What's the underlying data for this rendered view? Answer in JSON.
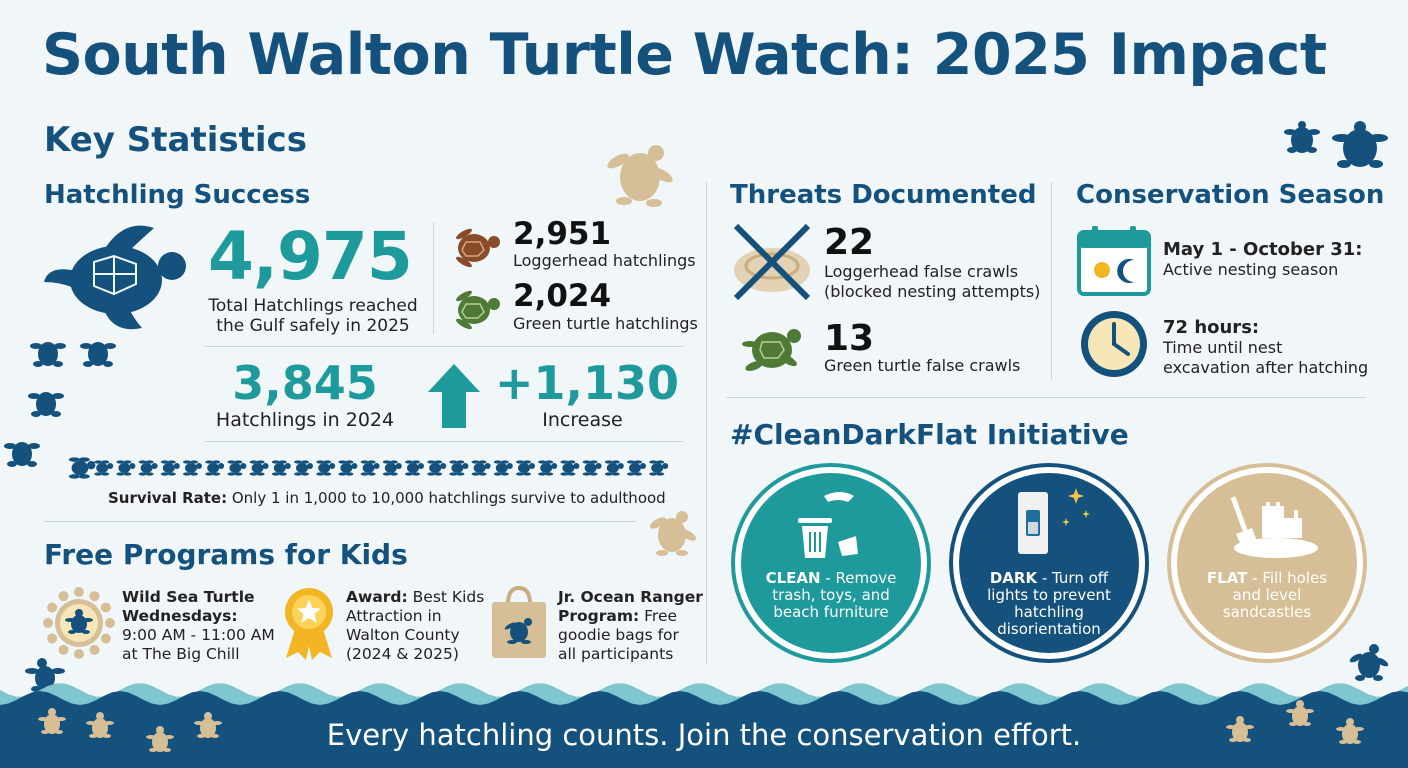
{
  "title": "South Walton Turtle Watch: 2025 Impact",
  "key_stats": {
    "heading": "Key Statistics",
    "hatchling_success": {
      "heading": "Hatchling Success",
      "total": "4,975",
      "total_label_line1": "Total Hatchlings reached",
      "total_label_line2": "the Gulf safely in 2025",
      "loggerhead_value": "2,951",
      "loggerhead_label": "Loggerhead hatchlings",
      "green_value": "2,024",
      "green_label": "Green turtle hatchlings",
      "prev_value": "3,845",
      "prev_label": "Hatchlings in 2024",
      "increase_value": "+1,130",
      "increase_label": "Increase",
      "survival_prefix": "Survival Rate:",
      "survival_text": "Only 1 in 1,000 to 10,000 hatchlings survive to adulthood"
    }
  },
  "kids": {
    "heading": "Free Programs for Kids",
    "items": [
      {
        "title_line1": "Wild Sea Turtle",
        "title_line2": "Wednesdays:",
        "line3": "9:00 AM - 11:00 AM",
        "line4": "at The Big Chill"
      },
      {
        "title": "Award:",
        "rest_line1": "Best Kids",
        "line2": "Attraction in",
        "line3": "Walton County",
        "line4": "(2024 & 2025)"
      },
      {
        "title_line1": "Jr. Ocean Ranger",
        "title_line2": "Program:",
        "rest_line2": "Free",
        "line3": "goodie bags for",
        "line4": "all participants"
      }
    ]
  },
  "threats": {
    "heading": "Threats Documented",
    "loggerhead_value": "22",
    "loggerhead_label_line1": "Loggerhead false crawls",
    "loggerhead_label_line2": "(blocked nesting attempts)",
    "green_value": "13",
    "green_label": "Green turtle false crawls"
  },
  "season": {
    "heading": "Conservation Season",
    "dates": "May 1 - October 31:",
    "dates_label": "Active nesting season",
    "hours": "72 hours:",
    "hours_label_line1": "Time until nest",
    "hours_label_line2": "excavation after hatching"
  },
  "initiative": {
    "heading": "#CleanDarkFlat Initiative",
    "circles": [
      {
        "key": "CLEAN",
        "line1": " - Remove",
        "line2": "trash, toys, and",
        "line3": "beach furniture"
      },
      {
        "key": "DARK",
        "line1": " - Turn off",
        "line2": "lights to prevent",
        "line3": "hatchling",
        "line4": "disorientation"
      },
      {
        "key": "FLAT",
        "line1": " - Fill holes",
        "line2": "and level",
        "line3": "sandcastles"
      }
    ]
  },
  "footer": "Every hatchling counts. Join the conservation effort.",
  "colors": {
    "navy": "#14517c",
    "teal": "#1f9a9c",
    "sand": "#d6bf96",
    "background": "#f1f6f9"
  }
}
